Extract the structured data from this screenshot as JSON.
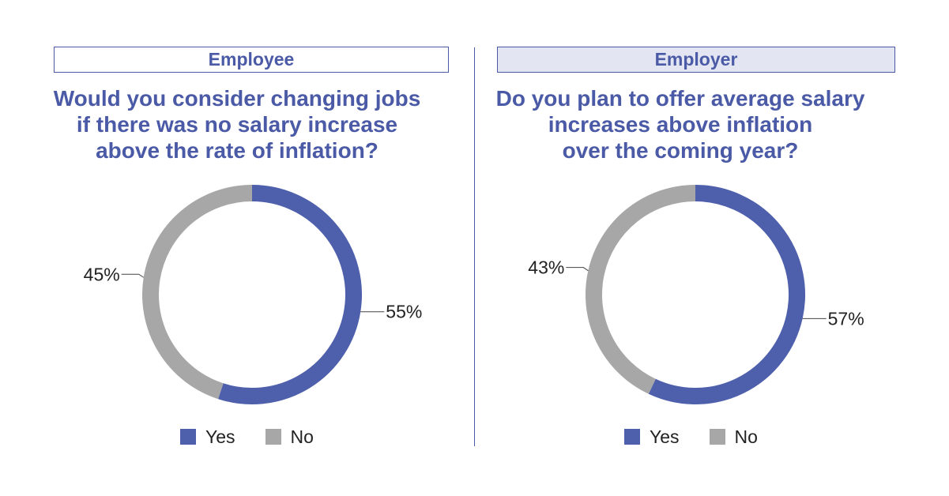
{
  "colors": {
    "yes": "#4e5fac",
    "no": "#a7a7a7",
    "accent": "#4b5aa6",
    "header_fill_employer": "#e3e5f2"
  },
  "panels": [
    {
      "header": "Employee",
      "question_lines": [
        "Would you consider changing jobs",
        "if there was no salary increase",
        "above the rate of inflation?"
      ]
    },
    {
      "header": "Employer",
      "question_lines": [
        "Do you plan to offer average salary",
        "increases above inflation",
        "over the coming year?"
      ]
    }
  ],
  "legend": {
    "yes": "Yes",
    "no": "No"
  },
  "chart_data": [
    {
      "type": "pie",
      "title": "Would you consider changing jobs if there was no salary increase above the rate of inflation?",
      "categories": [
        "Yes",
        "No"
      ],
      "values": [
        55,
        45
      ],
      "data_labels": [
        "55%",
        "45%"
      ],
      "style": "donut",
      "legend": "bottom"
    },
    {
      "type": "pie",
      "title": "Do you plan to offer average salary increases above inflation over the coming year?",
      "categories": [
        "Yes",
        "No"
      ],
      "values": [
        57,
        43
      ],
      "data_labels": [
        "57%",
        "43%"
      ],
      "style": "donut",
      "legend": "bottom"
    }
  ]
}
